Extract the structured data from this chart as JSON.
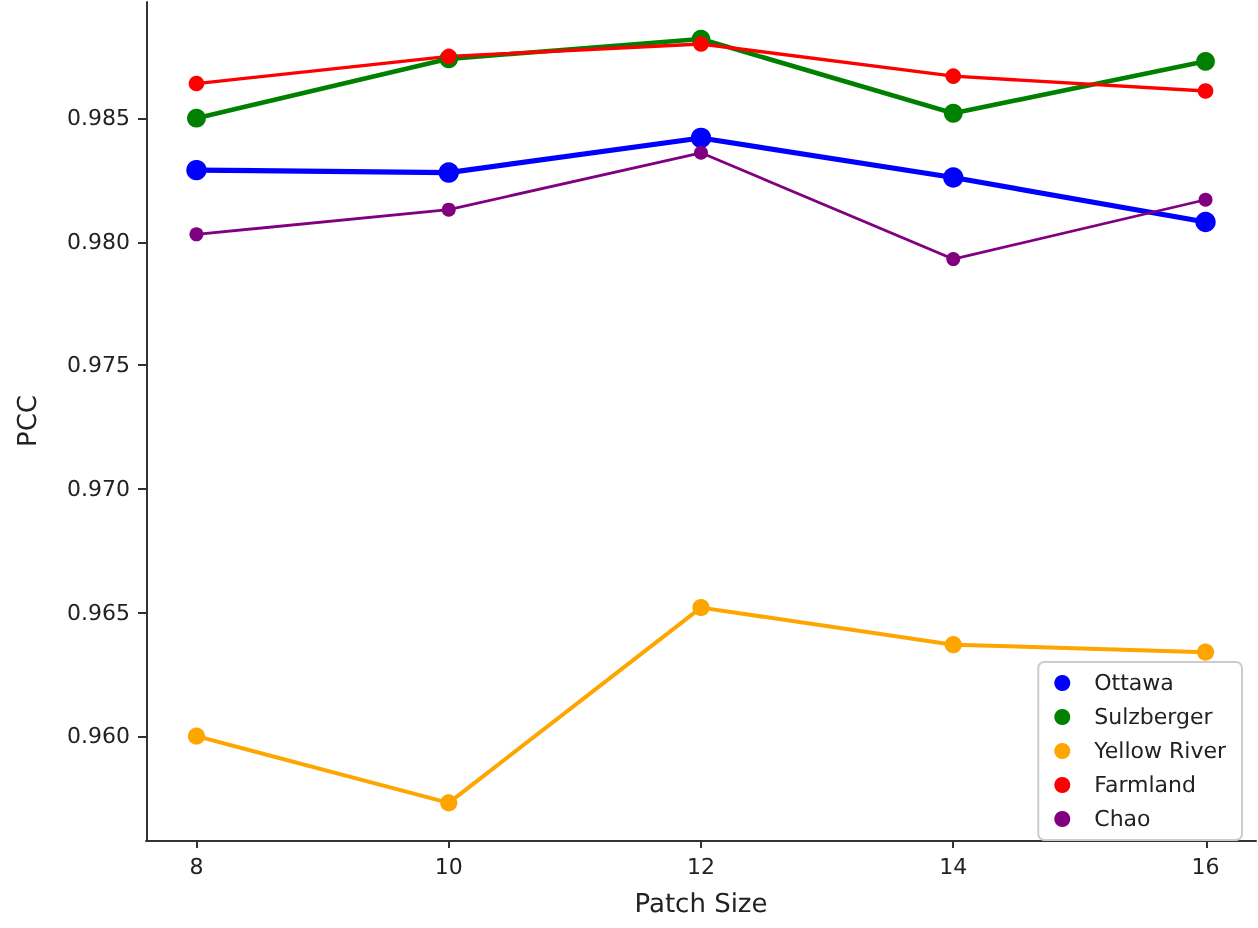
{
  "chart_data": {
    "type": "line",
    "xlabel": "Patch Size",
    "ylabel": "PCC",
    "x": [
      8,
      10,
      12,
      14,
      16
    ],
    "xlim": [
      7.6,
      16.4
    ],
    "xticks": [
      8,
      10,
      12,
      14,
      16
    ],
    "ylim": [
      0.9558,
      0.9897
    ],
    "yticks": [
      {
        "value": 0.96,
        "label": "0.960"
      },
      {
        "value": 0.965,
        "label": "0.965"
      },
      {
        "value": 0.97,
        "label": "0.970"
      },
      {
        "value": 0.975,
        "label": "0.975"
      },
      {
        "value": 0.98,
        "label": "0.980"
      },
      {
        "value": 0.985,
        "label": "0.985"
      }
    ],
    "series": [
      {
        "name": "Ottawa",
        "color": "#0000ff",
        "values": [
          0.9829,
          0.9828,
          0.9842,
          0.9826,
          0.9808
        ]
      },
      {
        "name": "Sulzberger",
        "color": "#008000",
        "values": [
          0.985,
          0.9874,
          0.9882,
          0.9852,
          0.9873
        ]
      },
      {
        "name": "Yellow River",
        "color": "#ffa500",
        "values": [
          0.96,
          0.9573,
          0.9652,
          0.9637,
          0.9634
        ]
      },
      {
        "name": "Farmland",
        "color": "#ff0000",
        "values": [
          0.9864,
          0.9875,
          0.988,
          0.9867,
          0.9861
        ]
      },
      {
        "name": "Chao",
        "color": "#800080",
        "values": [
          0.9803,
          0.9813,
          0.9836,
          0.9793,
          0.9817
        ]
      }
    ],
    "marker": "circle",
    "line_style": "solid",
    "legend": "bottom right",
    "grid": false
  }
}
